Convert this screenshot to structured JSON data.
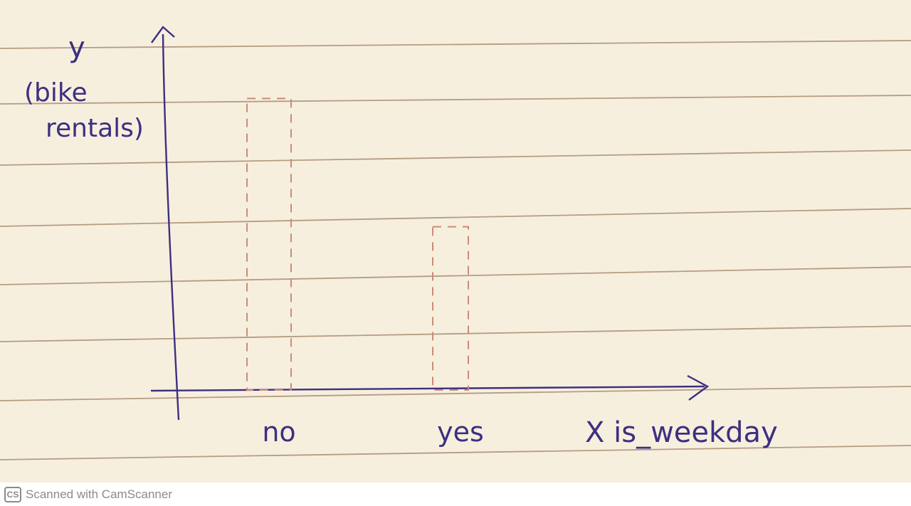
{
  "chart_data": {
    "type": "bar",
    "categories": [
      "no",
      "yes"
    ],
    "values": [
      10,
      5.6
    ],
    "ylim": [
      0,
      12.4
    ],
    "title": "",
    "xlabel": "X is_weekday",
    "ylabel": "y (bike rentals)",
    "ylabel_lines": [
      "y",
      "(bike",
      "rentals)"
    ],
    "bar_style": "dashed-outline",
    "grid": false,
    "legend": "none"
  },
  "colors": {
    "paper": "#f7efdd",
    "rule_lines": "#b49c84",
    "ink": "#3c2f82",
    "bar_outline": "#cc8a78"
  },
  "footer": {
    "logo": "CS",
    "text": "Scanned with CamScanner"
  }
}
